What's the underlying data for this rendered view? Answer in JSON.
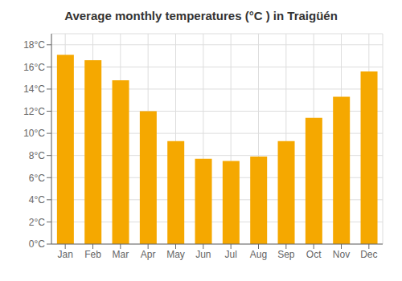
{
  "chart_data": {
    "type": "bar",
    "title": "Average monthly temperatures (°C ) in Traigüén",
    "categories": [
      "Jan",
      "Feb",
      "Mar",
      "Apr",
      "May",
      "Jun",
      "Jul",
      "Aug",
      "Sep",
      "Oct",
      "Nov",
      "Dec"
    ],
    "values": [
      17.1,
      16.6,
      14.8,
      12.0,
      9.3,
      7.7,
      7.5,
      7.9,
      9.3,
      11.4,
      13.3,
      15.6
    ],
    "color": "#F5A800",
    "ylim": [
      0,
      19
    ],
    "yticks": [
      {
        "value": 0,
        "label": "0°C"
      },
      {
        "value": 2,
        "label": "2°C"
      },
      {
        "value": 4,
        "label": "4°C"
      },
      {
        "value": 6,
        "label": "6°C"
      },
      {
        "value": 8,
        "label": "8°C"
      },
      {
        "value": 10,
        "label": "10°C"
      },
      {
        "value": 12,
        "label": "12°C"
      },
      {
        "value": 14,
        "label": "14°C"
      },
      {
        "value": 16,
        "label": "16°C"
      },
      {
        "value": 18,
        "label": "18°C"
      }
    ],
    "grid": true
  }
}
